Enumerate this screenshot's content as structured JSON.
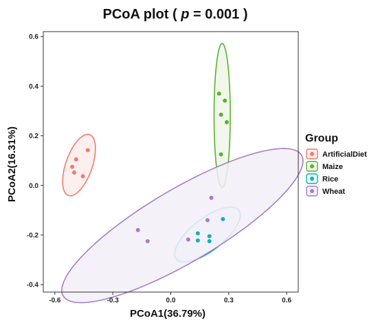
{
  "chart_data": {
    "type": "scatter",
    "title_prefix": "PCoA plot ( ",
    "title_p": "p",
    "title_suffix": " = 0.001 )",
    "xlabel": "PCoA1(36.79%)",
    "ylabel": "PCoA2(16.31%)",
    "xlim": [
      -0.66,
      0.66
    ],
    "ylim": [
      -0.43,
      0.62
    ],
    "xticks": [
      -0.6,
      -0.3,
      0.0,
      0.3,
      0.6
    ],
    "xtick_labels": [
      "-0.6",
      "-0.3",
      "0.0",
      "0.3",
      "0.6"
    ],
    "yticks": [
      -0.4,
      -0.2,
      0.0,
      0.2,
      0.4,
      0.6
    ],
    "ytick_labels": [
      "-0.4",
      "-0.2",
      "0.0",
      "0.2",
      "0.4",
      "0.6"
    ],
    "grid": false,
    "legend_title": "Group",
    "legend_position": "right",
    "series": [
      {
        "name": "ArtificialDiet",
        "color": "#f07a6e",
        "fill": "#fdeceb",
        "points": [
          [
            -0.43,
            0.142
          ],
          [
            -0.49,
            0.105
          ],
          [
            -0.51,
            0.075
          ],
          [
            -0.5,
            0.052
          ],
          [
            -0.455,
            0.037
          ]
        ],
        "ellipse": {
          "cx": -0.475,
          "cy": 0.082,
          "rx": 0.135,
          "ry": 0.066,
          "angle_deg": 63
        }
      },
      {
        "name": "Maize",
        "color": "#5ab031",
        "fill": "#eef7e8",
        "points": [
          [
            0.25,
            0.37
          ],
          [
            0.28,
            0.342
          ],
          [
            0.26,
            0.285
          ],
          [
            0.29,
            0.255
          ],
          [
            0.26,
            0.125
          ]
        ],
        "ellipse": {
          "cx": 0.266,
          "cy": 0.282,
          "rx": 0.29,
          "ry": 0.042,
          "angle_deg": 90
        }
      },
      {
        "name": "Rice",
        "color": "#14b1b4",
        "fill": "#e5f5f6",
        "points": [
          [
            0.27,
            -0.136
          ],
          [
            0.14,
            -0.193
          ],
          [
            0.2,
            -0.205
          ],
          [
            0.14,
            -0.222
          ],
          [
            0.2,
            -0.225
          ]
        ],
        "ellipse": {
          "cx": 0.19,
          "cy": -0.198,
          "rx": 0.19,
          "ry": 0.07,
          "angle_deg": 29
        }
      },
      {
        "name": "Wheat",
        "color": "#a47ec4",
        "fill": "#f3eef8",
        "points": [
          [
            0.21,
            -0.05
          ],
          [
            0.19,
            -0.14
          ],
          [
            -0.17,
            -0.18
          ],
          [
            -0.12,
            -0.225
          ],
          [
            0.09,
            -0.218
          ]
        ],
        "ellipse": {
          "cx": 0.06,
          "cy": -0.162,
          "rx": 0.68,
          "ry": 0.155,
          "angle_deg": 24
        }
      }
    ]
  }
}
